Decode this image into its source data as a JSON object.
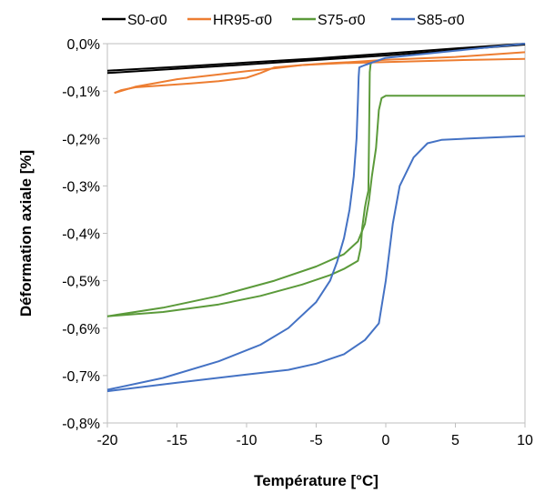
{
  "chart_data": {
    "type": "line",
    "title": "",
    "xlabel": "Température [°C]",
    "ylabel": "Déformation axiale [%]",
    "xlim": [
      -20,
      10
    ],
    "ylim": [
      -0.8,
      0.0
    ],
    "grid": false,
    "legend_position": "top",
    "x_ticks": [
      "-20",
      "-15",
      "-10",
      "-5",
      "0",
      "5",
      "10"
    ],
    "y_ticks": [
      "0,0%",
      "-0,1%",
      "-0,2%",
      "-0,3%",
      "-0,4%",
      "-0,5%",
      "-0,6%",
      "-0,7%",
      "-0,8%"
    ],
    "series": [
      {
        "name": "S0-σ0",
        "color": "#000000",
        "x": [
          -20,
          -15,
          -10,
          -5,
          0,
          5,
          10
        ],
        "y": [
          -0.057,
          -0.049,
          -0.04,
          -0.031,
          -0.021,
          -0.01,
          0.0
        ],
        "x2": [
          -20,
          -10,
          0,
          10
        ],
        "y2": [
          -0.062,
          -0.044,
          -0.025,
          -0.002
        ]
      },
      {
        "name": "HR95-σ0",
        "color": "#ED7D31",
        "x": [
          -19.5,
          -19,
          -18,
          -16,
          -14,
          -12,
          -10,
          -9,
          -8,
          -6,
          -4,
          -2,
          0,
          5,
          10
        ],
        "y": [
          -0.104,
          -0.098,
          -0.092,
          -0.088,
          -0.084,
          -0.079,
          -0.072,
          -0.062,
          -0.05,
          -0.045,
          -0.041,
          -0.038,
          -0.034,
          -0.028,
          -0.018
        ],
        "x2": [
          -19.5,
          -18,
          -15,
          -12,
          -10,
          -8,
          -6,
          -3,
          0,
          5,
          10
        ],
        "y2": [
          -0.104,
          -0.091,
          -0.075,
          -0.065,
          -0.058,
          -0.052,
          -0.045,
          -0.041,
          -0.039,
          -0.035,
          -0.032
        ]
      },
      {
        "name": "S75-σ0",
        "color": "#5B9A3A",
        "x": [
          -20,
          -16,
          -12,
          -9,
          -6,
          -4,
          -3,
          -2,
          -1.8,
          -1.7,
          -1.5,
          -1.4,
          -1.25,
          -1.2,
          -1.15,
          -1.1,
          -1.05
        ],
        "y": [
          -0.575,
          -0.566,
          -0.55,
          -0.532,
          -0.508,
          -0.488,
          -0.475,
          -0.458,
          -0.43,
          -0.39,
          -0.345,
          -0.33,
          -0.31,
          -0.2,
          -0.06,
          -0.045,
          -0.04
        ],
        "x2": [
          -20,
          -16,
          -12,
          -8,
          -5,
          -3,
          -2,
          -1.5,
          -1.2,
          -1.0,
          -0.7,
          -0.5,
          -0.3,
          0,
          3,
          10
        ],
        "y2": [
          -0.575,
          -0.557,
          -0.532,
          -0.5,
          -0.47,
          -0.444,
          -0.417,
          -0.38,
          -0.33,
          -0.28,
          -0.22,
          -0.14,
          -0.115,
          -0.11,
          -0.11,
          -0.11
        ]
      },
      {
        "name": "S85-σ0",
        "color": "#4472C4",
        "x": [
          -20,
          -16,
          -12,
          -9,
          -7,
          -5,
          -4,
          -3.5,
          -3,
          -2.6,
          -2.3,
          -2.1,
          -2.0,
          -1.95,
          -1.9,
          -1.5,
          0,
          5,
          10
        ],
        "y": [
          -0.73,
          -0.705,
          -0.67,
          -0.635,
          -0.6,
          -0.545,
          -0.5,
          -0.46,
          -0.41,
          -0.35,
          -0.28,
          -0.2,
          -0.12,
          -0.07,
          -0.05,
          -0.045,
          -0.03,
          -0.015,
          0.0
        ],
        "x2": [
          -20,
          -15,
          -10,
          -7,
          -5,
          -3,
          -1.5,
          -0.5,
          0,
          0.5,
          1,
          2,
          3,
          4,
          6,
          10
        ],
        "y2": [
          -0.733,
          -0.715,
          -0.698,
          -0.688,
          -0.675,
          -0.655,
          -0.625,
          -0.59,
          -0.5,
          -0.38,
          -0.3,
          -0.24,
          -0.21,
          -0.203,
          -0.2,
          -0.195
        ]
      }
    ]
  }
}
